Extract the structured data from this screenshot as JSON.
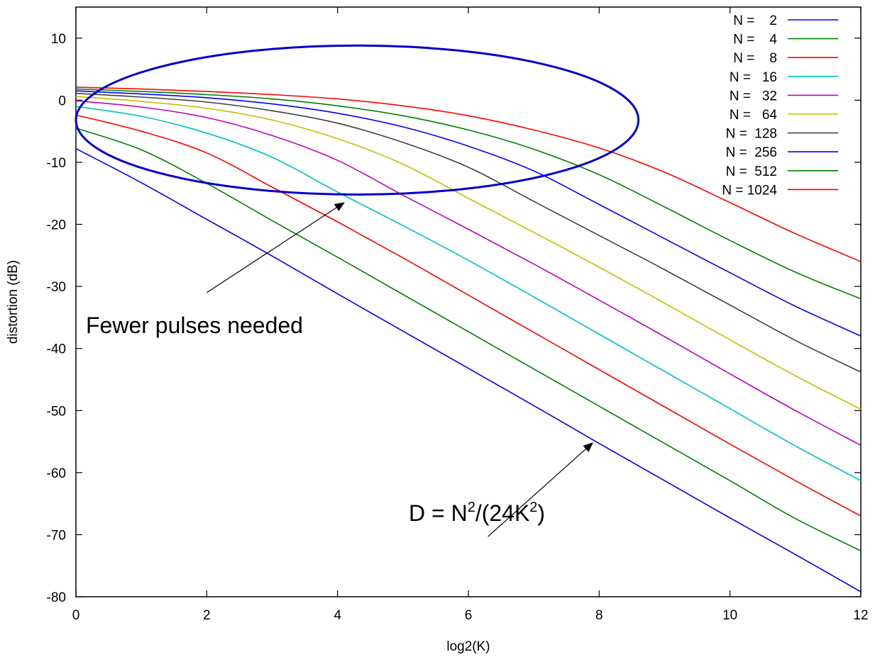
{
  "chart_data": {
    "type": "line",
    "title": "",
    "xlabel": "log2(K)",
    "ylabel": "distortion (dB)",
    "xlim": [
      0,
      12
    ],
    "ylim": [
      -80,
      15
    ],
    "x_ticks": [
      0,
      2,
      4,
      6,
      8,
      10,
      12
    ],
    "y_ticks": [
      -80,
      -70,
      -60,
      -50,
      -40,
      -30,
      -20,
      -10,
      0,
      10
    ],
    "grid": false,
    "legend_position": "top-right",
    "colors": [
      "#0000ff",
      "#008000",
      "#ff0000",
      "#00c0c0",
      "#c000c0",
      "#c0c000",
      "#404040",
      "#0000ff",
      "#008000",
      "#ff0000"
    ],
    "x": [
      0,
      1,
      2,
      3,
      4,
      5,
      6,
      7,
      8,
      9,
      10,
      11,
      12
    ],
    "series": [
      {
        "name": "N =    2",
        "values": [
          -7.8,
          -13.3,
          -19.2,
          -25.1,
          -31.2,
          -37.2,
          -43.2,
          -49.2,
          -55.3,
          -61.3,
          -67.3,
          -73.2,
          -79.2
        ]
      },
      {
        "name": "N =    4",
        "values": [
          -4.5,
          -8.0,
          -13.4,
          -19.4,
          -25.3,
          -31.3,
          -37.3,
          -43.3,
          -49.3,
          -55.3,
          -61.3,
          -67.4,
          -72.6
        ]
      },
      {
        "name": "N =    8",
        "values": [
          -2.4,
          -5.0,
          -8.5,
          -14.0,
          -19.6,
          -25.4,
          -31.4,
          -37.4,
          -43.4,
          -49.4,
          -55.4,
          -61.3,
          -67.0
        ]
      },
      {
        "name": "N =   16",
        "values": [
          -1.0,
          -2.6,
          -5.3,
          -9.2,
          -14.8,
          -20.2,
          -25.8,
          -31.7,
          -37.7,
          -43.7,
          -49.7,
          -55.7,
          -61.3
        ]
      },
      {
        "name": "N =   32",
        "values": [
          -0.1,
          -1.1,
          -2.8,
          -5.7,
          -9.7,
          -15.3,
          -20.8,
          -26.4,
          -32.2,
          -38.1,
          -44.1,
          -50.0,
          -55.6
        ]
      },
      {
        "name": "N =   64",
        "values": [
          0.6,
          -0.2,
          -1.3,
          -3.2,
          -6.2,
          -10.3,
          -15.8,
          -21.3,
          -26.9,
          -32.7,
          -38.6,
          -44.4,
          -49.8
        ]
      },
      {
        "name": "N =  128",
        "values": [
          1.1,
          0.5,
          -0.3,
          -1.7,
          -3.7,
          -6.8,
          -10.8,
          -16.3,
          -21.8,
          -27.3,
          -33.0,
          -38.7,
          -43.8
        ]
      },
      {
        "name": "N =  256",
        "values": [
          1.5,
          1.0,
          0.4,
          -0.6,
          -2.1,
          -4.3,
          -7.4,
          -11.4,
          -16.8,
          -22.3,
          -27.8,
          -33.2,
          -38.0
        ]
      },
      {
        "name": "N =  512",
        "values": [
          1.8,
          1.4,
          0.9,
          0.2,
          -0.9,
          -2.5,
          -4.8,
          -7.9,
          -12.0,
          -17.2,
          -22.6,
          -27.7,
          -32.0
        ]
      },
      {
        "name": "N = 1024",
        "values": [
          2.1,
          1.8,
          1.4,
          0.9,
          0.2,
          -0.9,
          -2.5,
          -4.8,
          -7.7,
          -11.6,
          -16.5,
          -21.5,
          -26.0
        ]
      }
    ],
    "annotations": [
      {
        "text": "Fewer pulses needed",
        "ellipse": {
          "cx": 4.3,
          "cy": -3.2,
          "rx": 4.3,
          "ry": 12.0,
          "color": "#0000cc"
        },
        "arrow_from": [
          2.0,
          -31.0
        ],
        "arrow_to": [
          4.1,
          -16.5
        ]
      },
      {
        "text_main": "D = N",
        "sup1": "2",
        "text_mid": "/(24K",
        "sup2": "2",
        "text_end": ")",
        "arrow_from": [
          6.3,
          -70.3
        ],
        "arrow_to": [
          7.9,
          -55.2
        ]
      }
    ]
  }
}
